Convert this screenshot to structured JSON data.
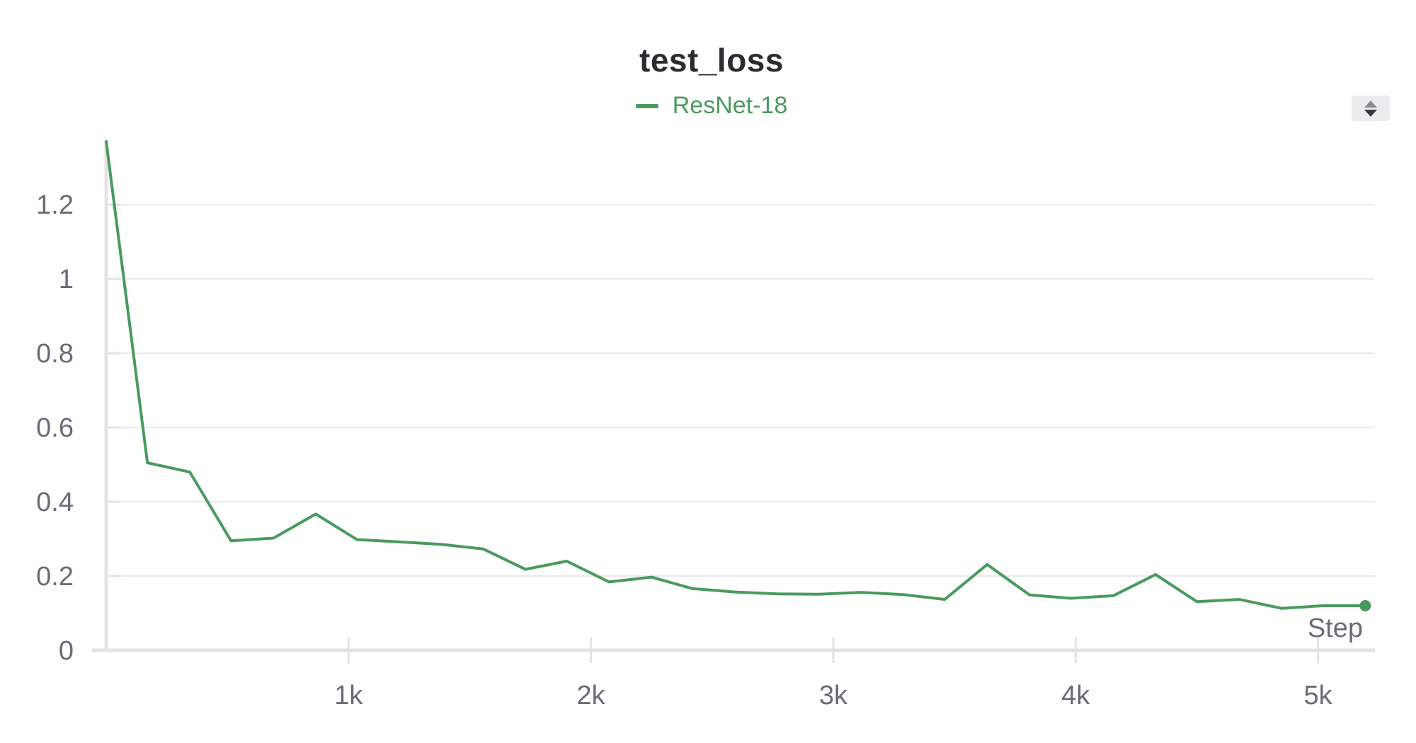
{
  "title": "test_loss",
  "legend": {
    "label": "ResNet-18",
    "color": "#4a9a5e"
  },
  "sort_toggle": {
    "icon": "sort-up-down-icon"
  },
  "chart_data": {
    "type": "line",
    "title": "test_loss",
    "xlabel": "Step",
    "ylabel": "",
    "xlim": [
      0,
      5235
    ],
    "ylim": [
      0,
      1.37
    ],
    "grid": true,
    "legend_position": "top-center",
    "x_ticks": [
      {
        "value": 1000,
        "label": "1k"
      },
      {
        "value": 2000,
        "label": "2k"
      },
      {
        "value": 3000,
        "label": "3k"
      },
      {
        "value": 4000,
        "label": "4k"
      },
      {
        "value": 5000,
        "label": "5k"
      }
    ],
    "y_ticks": [
      {
        "value": 0,
        "label": "0"
      },
      {
        "value": 0.2,
        "label": "0.2"
      },
      {
        "value": 0.4,
        "label": "0.4"
      },
      {
        "value": 0.6,
        "label": "0.6"
      },
      {
        "value": 0.8,
        "label": "0.8"
      },
      {
        "value": 1.0,
        "label": "1"
      },
      {
        "value": 1.2,
        "label": "1.2"
      }
    ],
    "series": [
      {
        "name": "ResNet-18",
        "color": "#4a9a5e",
        "x": [
          0,
          170,
          345,
          515,
          690,
          865,
          1035,
          1210,
          1385,
          1555,
          1730,
          1900,
          2075,
          2250,
          2420,
          2595,
          2770,
          2940,
          3115,
          3290,
          3460,
          3635,
          3810,
          3980,
          4155,
          4330,
          4500,
          4675,
          4850,
          5020,
          5195
        ],
        "y": [
          1.37,
          0.505,
          0.48,
          0.295,
          0.302,
          0.367,
          0.298,
          0.292,
          0.285,
          0.273,
          0.218,
          0.24,
          0.184,
          0.197,
          0.166,
          0.157,
          0.152,
          0.151,
          0.156,
          0.15,
          0.137,
          0.231,
          0.149,
          0.14,
          0.147,
          0.204,
          0.131,
          0.137,
          0.113,
          0.12,
          0.12
        ]
      }
    ]
  }
}
